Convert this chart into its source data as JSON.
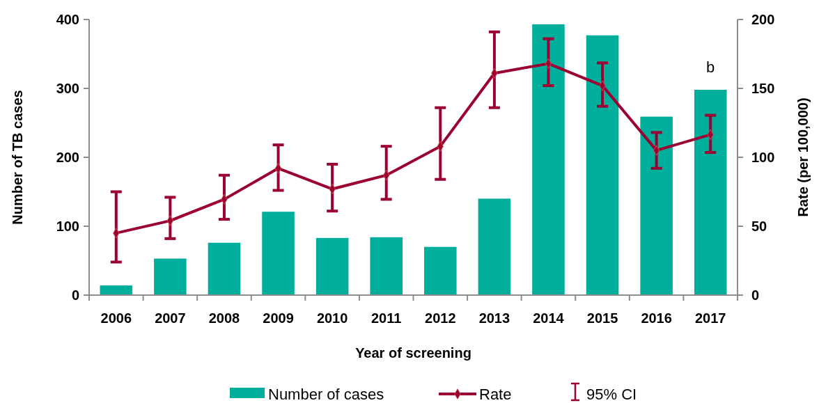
{
  "chart_data": {
    "type": "bar",
    "xlabel": "Year of screening",
    "ylabel": "Number of TB cases",
    "y2label": "Rate (per 100,000)",
    "categories": [
      "2006",
      "2007",
      "2008",
      "2009",
      "2010",
      "2011",
      "2012",
      "2013",
      "2014",
      "2015",
      "2016",
      "2017"
    ],
    "series": [
      {
        "name": "Number of cases",
        "color": "#00ae9c",
        "values": [
          14,
          53,
          76,
          121,
          83,
          84,
          70,
          140,
          393,
          377,
          259,
          298
        ]
      },
      {
        "name": "Rate",
        "type": "line",
        "axis": "y2",
        "color": "#9b0032",
        "marker": "diamond",
        "values": [
          45,
          54,
          69.5,
          92,
          77,
          87,
          108,
          161,
          168,
          152,
          105,
          116.5
        ],
        "errors": [
          [
            24,
            75
          ],
          [
            41,
            71
          ],
          [
            55,
            87
          ],
          [
            76,
            109
          ],
          [
            61,
            95
          ],
          [
            69.5,
            108
          ],
          [
            84,
            136
          ],
          [
            136,
            191
          ],
          [
            152,
            186
          ],
          [
            137,
            168.5
          ],
          [
            92,
            118
          ],
          [
            103.5,
            130.5
          ]
        ]
      }
    ],
    "ylim": [
      0,
      400
    ],
    "yticks": [
      0,
      100,
      200,
      300,
      400
    ],
    "y2lim": [
      0,
      200
    ],
    "y2ticks": [
      0,
      50,
      100,
      150,
      200
    ],
    "grid": false,
    "legend": "bottom",
    "annotations": [
      "b",
      "95% CI"
    ]
  }
}
